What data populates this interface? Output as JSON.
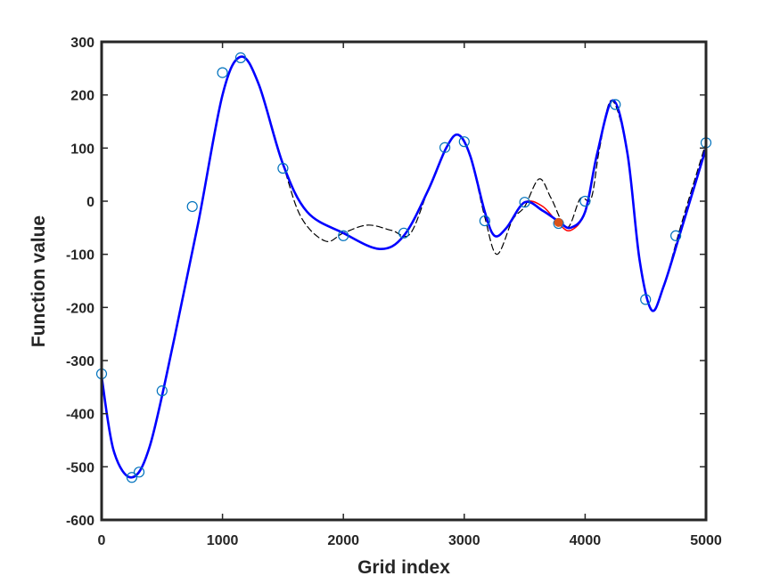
{
  "chart_data": {
    "type": "line",
    "title": "",
    "xlabel": "Grid index",
    "ylabel": "Function value",
    "xlim": [
      0,
      5000
    ],
    "ylim": [
      -600,
      300
    ],
    "xticks": [
      0,
      1000,
      2000,
      3000,
      4000,
      5000
    ],
    "yticks": [
      -600,
      -500,
      -400,
      -300,
      -200,
      -100,
      0,
      100,
      200,
      300
    ],
    "grid": false,
    "legend": "none",
    "colors": {
      "axis": "#262626",
      "red_curve": "#ff0000",
      "blue_curve": "#0000ff",
      "dashed_curve": "#000000",
      "markers": "#0072bd",
      "highlight_point": "#d95319"
    },
    "series": [
      {
        "style": "red-solid",
        "x": [
          0,
          100,
          250,
          400,
          600,
          800,
          1000,
          1150,
          1300,
          1500,
          1700,
          2000,
          2300,
          2500,
          2700,
          2850,
          2950,
          3050,
          3170,
          3250,
          3350,
          3500,
          3650,
          3780,
          3880,
          4000,
          4100,
          4230,
          4350,
          4450,
          4550,
          4650,
          4800,
          5000
        ],
        "y": [
          -330,
          -470,
          -520,
          -460,
          -260,
          -40,
          200,
          272,
          220,
          70,
          -20,
          -60,
          -90,
          -65,
          20,
          100,
          125,
          85,
          -20,
          -65,
          -50,
          -2,
          -10,
          -42,
          -55,
          -20,
          90,
          190,
          90,
          -110,
          -205,
          -160,
          -50,
          100
        ]
      },
      {
        "style": "blue-solid",
        "x": [
          0,
          100,
          250,
          400,
          600,
          800,
          1000,
          1150,
          1300,
          1500,
          1700,
          2000,
          2300,
          2500,
          2700,
          2850,
          2950,
          3050,
          3170,
          3250,
          3350,
          3500,
          3650,
          3780,
          3880,
          4000,
          4100,
          4230,
          4350,
          4450,
          4550,
          4650,
          4800,
          5000
        ],
        "y": [
          -330,
          -470,
          -520,
          -460,
          -260,
          -40,
          200,
          272,
          220,
          70,
          -20,
          -60,
          -90,
          -65,
          20,
          100,
          125,
          85,
          -20,
          -65,
          -50,
          -2,
          -18,
          -38,
          -50,
          -20,
          90,
          190,
          90,
          -110,
          -205,
          -160,
          -50,
          100
        ]
      },
      {
        "style": "black-dashed",
        "x": [
          0,
          100,
          250,
          400,
          600,
          800,
          1000,
          1150,
          1300,
          1500,
          1650,
          1850,
          2000,
          2200,
          2400,
          2550,
          2700,
          2850,
          2950,
          3050,
          3170,
          3270,
          3400,
          3500,
          3620,
          3720,
          3850,
          3960,
          4050,
          4120,
          4220,
          4350,
          4450,
          4550,
          4650,
          4800,
          5000
        ],
        "y": [
          -330,
          -470,
          -520,
          -460,
          -260,
          -40,
          200,
          272,
          220,
          70,
          -30,
          -75,
          -60,
          -45,
          -55,
          -62,
          20,
          100,
          125,
          85,
          -30,
          -100,
          -35,
          -10,
          42,
          5,
          -50,
          5,
          5,
          100,
          190,
          90,
          -110,
          -205,
          -160,
          -40,
          110
        ]
      }
    ],
    "markers": {
      "x": [
        0,
        250,
        310,
        500,
        750,
        1000,
        1150,
        1500,
        2000,
        2500,
        2840,
        3000,
        3170,
        3500,
        3780,
        4000,
        4250,
        4500,
        4750,
        5000
      ],
      "y": [
        -325,
        -520,
        -510,
        -357,
        -10,
        242,
        270,
        62,
        -65,
        -60,
        101,
        112,
        -37,
        -2,
        -42,
        0,
        182,
        -185,
        -65,
        110
      ]
    },
    "highlight_point": {
      "x": 3780,
      "y": -40
    }
  }
}
